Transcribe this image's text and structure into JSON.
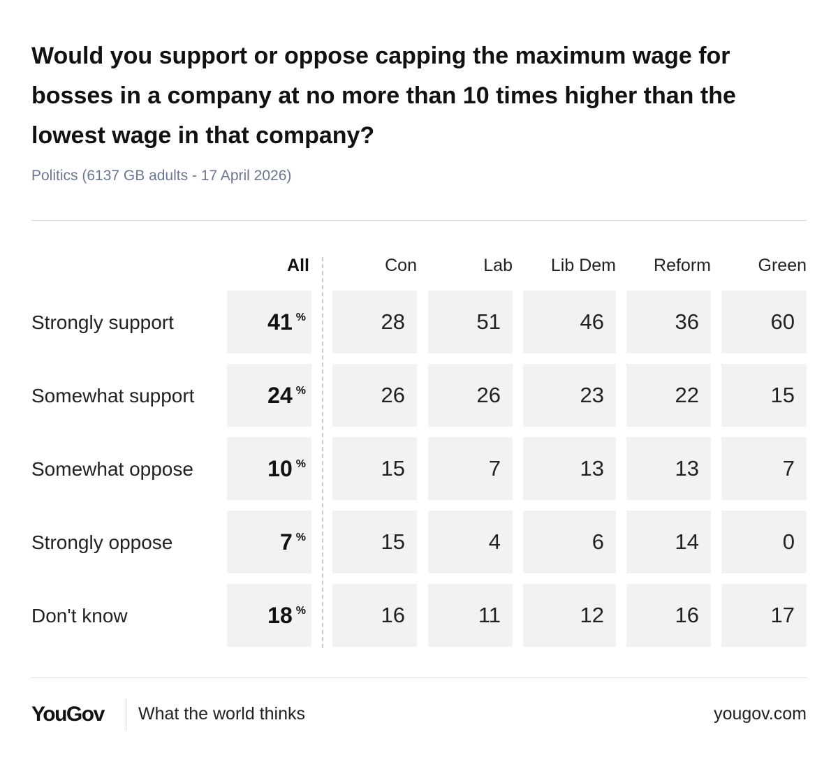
{
  "title": "Would you support or oppose capping the maximum wage for bosses in a company at no more than 10 times higher than the lowest wage in that company?",
  "subtitle": "Politics (6137 GB adults - 17 April 2026)",
  "percent_sign": "%",
  "footer": {
    "logo": "YouGov",
    "tagline": "What the world thinks",
    "url": "yougov.com"
  },
  "colors": {
    "cell_bg": "#f1f2f4",
    "subtitle": "#6b7790",
    "rule": "#d9dde3",
    "text": "#111111"
  },
  "chart_data": {
    "type": "table",
    "title": "Would you support or oppose capping the maximum wage for bosses in a company at no more than 10 times higher than the lowest wage in that company?",
    "unit": "%",
    "columns": [
      "All",
      "Con",
      "Lab",
      "Lib Dem",
      "Reform",
      "Green"
    ],
    "rows": [
      {
        "label": "Strongly support",
        "values": [
          41,
          28,
          51,
          46,
          36,
          60
        ]
      },
      {
        "label": "Somewhat support",
        "values": [
          24,
          26,
          26,
          23,
          22,
          15
        ]
      },
      {
        "label": "Somewhat oppose",
        "values": [
          10,
          15,
          7,
          13,
          13,
          7
        ]
      },
      {
        "label": "Strongly oppose",
        "values": [
          7,
          15,
          4,
          6,
          14,
          0
        ]
      },
      {
        "label": "Don't know",
        "values": [
          18,
          16,
          11,
          12,
          16,
          17
        ]
      }
    ]
  }
}
